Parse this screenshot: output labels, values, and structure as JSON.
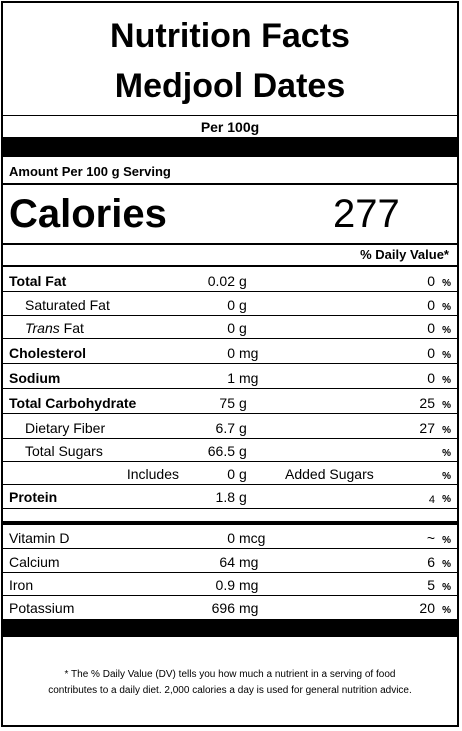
{
  "header": {
    "title_line1": "Nutrition Facts",
    "title_line2": "Medjool Dates"
  },
  "per_label": "Per 100g",
  "amount_per_serving": "Amount Per 100 g Serving",
  "calories": {
    "label": "Calories",
    "value": "277"
  },
  "daily_value_heading": "% Daily Value*",
  "pct_sign": "%",
  "nutrients": [
    {
      "name": "Total Fat",
      "amount": "0.02",
      "unit": "g",
      "dv": "0"
    },
    {
      "name": "Saturated Fat",
      "amount": "0",
      "unit": "g",
      "dv": "0"
    },
    {
      "name_italic": "Trans",
      "name": " Fat",
      "amount": "0",
      "unit": "g",
      "dv": "0"
    },
    {
      "name": "Cholesterol",
      "amount": "0",
      "unit": "mg",
      "dv": "0"
    },
    {
      "name": "Sodium",
      "amount": "1",
      "unit": "mg",
      "dv": "0"
    },
    {
      "name": "Total Carbohydrate",
      "amount": "75",
      "unit": "g",
      "dv": "25"
    },
    {
      "name": "Dietary Fiber",
      "amount": "6.7",
      "unit": "g",
      "dv": "27"
    },
    {
      "name": "Total Sugars",
      "amount": "66.5",
      "unit": "g",
      "dv": ""
    },
    {
      "name": "Includes",
      "amount": "0",
      "unit": "g",
      "suffix": "Added Sugars",
      "dv": ""
    },
    {
      "name": "Protein",
      "amount": "1.8",
      "unit": "g",
      "dv": "4"
    }
  ],
  "vitamins": [
    {
      "name": "Vitamin D",
      "amount": "0",
      "unit": "mcg",
      "dv": "~"
    },
    {
      "name": "Calcium",
      "amount": "64",
      "unit": "mg",
      "dv": "6"
    },
    {
      "name": "Iron",
      "amount": "0.9",
      "unit": "mg",
      "dv": "5"
    },
    {
      "name": "Potassium",
      "amount": "696",
      "unit": "mg",
      "dv": "20"
    }
  ],
  "footnote": {
    "line1": "* The % Daily Value (DV) tells you how much a nutrient in a serving of food",
    "line2": "contributes to a daily diet. 2,000 calories a day is used for general nutrition advice."
  }
}
